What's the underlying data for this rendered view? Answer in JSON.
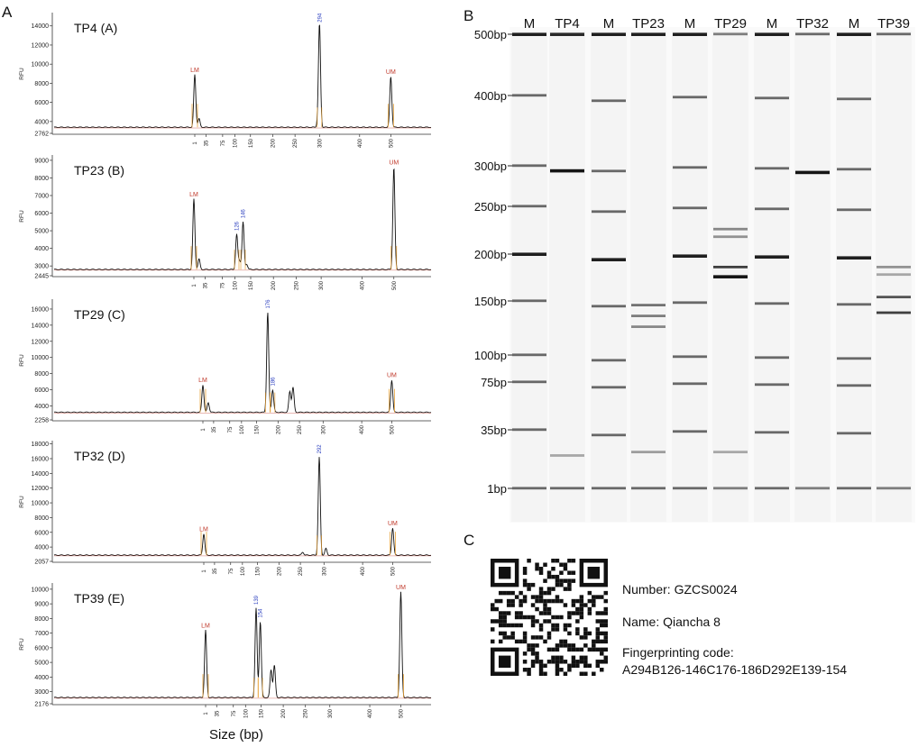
{
  "figure": {
    "panel_letters": [
      "A",
      "B",
      "C"
    ]
  },
  "colors": {
    "trace": "#111111",
    "trace_red": "#c0392b",
    "marker_label": "#c0392b",
    "peak_label": "#2b3fbf",
    "orange_bar": "#e8a33a",
    "gel_background": "#ffffff",
    "band": "#1a1a1a"
  },
  "chart_data": [
    {
      "type": "line",
      "title": "TP4 (A)",
      "ylabel": "RFU",
      "xlabel": "",
      "yticks": [
        2762,
        4000,
        6000,
        8000,
        10000,
        12000,
        14000
      ],
      "ylim": [
        2762,
        15200
      ],
      "xticks": [
        "1",
        "35",
        "75",
        "100",
        "150",
        "200",
        "250",
        "300",
        "400",
        "500"
      ],
      "baseline": 3400,
      "peaks": [
        {
          "x": 0,
          "height": 8900,
          "label": "LM",
          "kind": "marker"
        },
        {
          "x": 0.38,
          "height": 4300,
          "label": "",
          "kind": "minor"
        },
        {
          "x": 7.0,
          "height": 14000,
          "label": "294",
          "kind": "sample"
        },
        {
          "x": 6.94,
          "height": 4100,
          "label": "",
          "kind": "minor"
        },
        {
          "x": 9.0,
          "height": 8700,
          "label": "UM",
          "kind": "marker"
        }
      ]
    },
    {
      "type": "line",
      "title": "TP23 (B)",
      "ylabel": "RFU",
      "xlabel": "",
      "yticks": [
        2445,
        3000,
        4000,
        5000,
        6000,
        7000,
        8000,
        9000
      ],
      "ylim": [
        2445,
        9200
      ],
      "xticks": [
        "1",
        "35",
        "75",
        "100",
        "150",
        "200",
        "250",
        "300",
        "400",
        "500"
      ],
      "baseline": 2800,
      "peaks": [
        {
          "x": 0,
          "height": 6800,
          "label": "LM",
          "kind": "marker"
        },
        {
          "x": 0.45,
          "height": 3400,
          "label": "",
          "kind": "minor"
        },
        {
          "x": 3.12,
          "height": 4800,
          "label": "126",
          "kind": "sample"
        },
        {
          "x": 3.52,
          "height": 5500,
          "label": "146",
          "kind": "sample"
        },
        {
          "x": 3.3,
          "height": 3300,
          "label": "",
          "kind": "minor"
        },
        {
          "x": 3.75,
          "height": 3100,
          "label": "",
          "kind": "minor"
        },
        {
          "x": 9.0,
          "height": 8600,
          "label": "UM",
          "kind": "marker"
        }
      ]
    },
    {
      "type": "line",
      "title": "TP29 (C)",
      "ylabel": "RFU",
      "xlabel": "",
      "yticks": [
        2258,
        4000,
        6000,
        8000,
        10000,
        12000,
        14000,
        16000
      ],
      "ylim": [
        2258,
        17000
      ],
      "xticks": [
        "1",
        "35",
        "75",
        "100",
        "150",
        "200",
        "250",
        "300",
        "400",
        "500"
      ],
      "baseline": 3200,
      "peaks": [
        {
          "x": 0,
          "height": 6600,
          "label": "LM",
          "kind": "marker"
        },
        {
          "x": 0.5,
          "height": 4400,
          "label": "",
          "kind": "minor"
        },
        {
          "x": 4.52,
          "height": 15600,
          "label": "176",
          "kind": "sample"
        },
        {
          "x": 4.75,
          "height": 6000,
          "label": "186",
          "kind": "sample"
        },
        {
          "x": 5.55,
          "height": 5800,
          "label": "",
          "kind": "minor"
        },
        {
          "x": 5.7,
          "height": 6300,
          "label": "",
          "kind": "minor"
        },
        {
          "x": 9.0,
          "height": 7200,
          "label": "UM",
          "kind": "marker"
        }
      ]
    },
    {
      "type": "line",
      "title": "TP32 (D)",
      "ylabel": "RFU",
      "xlabel": "",
      "yticks": [
        2057,
        4000,
        6000,
        8000,
        10000,
        12000,
        14000,
        16000,
        18000
      ],
      "ylim": [
        2057,
        18200
      ],
      "xticks": [
        "1",
        "35",
        "75",
        "100",
        "150",
        "200",
        "250",
        "300",
        "400",
        "500"
      ],
      "baseline": 2900,
      "peaks": [
        {
          "x": 0,
          "height": 5800,
          "label": "LM",
          "kind": "marker"
        },
        {
          "x": 6.8,
          "height": 16200,
          "label": "292",
          "kind": "sample"
        },
        {
          "x": 7.05,
          "height": 3800,
          "label": "",
          "kind": "minor"
        },
        {
          "x": 6.1,
          "height": 3300,
          "label": "",
          "kind": "minor"
        },
        {
          "x": 9.0,
          "height": 6600,
          "label": "UM",
          "kind": "marker"
        }
      ]
    },
    {
      "type": "line",
      "title": "TP39 (E)",
      "ylabel": "RFU",
      "xlabel": "Size (bp)",
      "yticks": [
        2176,
        3000,
        4000,
        5000,
        6000,
        7000,
        8000,
        9000,
        10000
      ],
      "ylim": [
        2176,
        10300
      ],
      "xticks": [
        "1",
        "35",
        "75",
        "100",
        "150",
        "200",
        "250",
        "300",
        "400",
        "500"
      ],
      "baseline": 2600,
      "peaks": [
        {
          "x": 0,
          "height": 7200,
          "label": "LM",
          "kind": "marker"
        },
        {
          "x": 3.68,
          "height": 8700,
          "label": "139",
          "kind": "sample"
        },
        {
          "x": 3.95,
          "height": 7800,
          "label": "154",
          "kind": "sample"
        },
        {
          "x": 4.45,
          "height": 4500,
          "label": "",
          "kind": "minor"
        },
        {
          "x": 4.6,
          "height": 4800,
          "label": "",
          "kind": "minor"
        },
        {
          "x": 9.0,
          "height": 9800,
          "label": "UM",
          "kind": "marker"
        }
      ]
    },
    {
      "type": "gel",
      "title": "",
      "lanes": [
        "M",
        "TP4",
        "M",
        "TP23",
        "M",
        "TP29",
        "M",
        "TP32",
        "M",
        "TP39"
      ],
      "size_labels": [
        "500bp",
        "400bp",
        "300bp",
        "250bp",
        "200bp",
        "150bp",
        "100bp",
        "75bp",
        "35bp",
        "1bp"
      ],
      "ladder_bp": [
        500,
        400,
        300,
        250,
        200,
        150,
        100,
        75,
        35,
        1
      ],
      "bands": {
        "TP4": [
          {
            "bp": 294,
            "intensity": 1.0
          },
          {
            "bp": 500,
            "intensity": 0.9
          },
          {
            "bp": 1,
            "intensity": 0.6
          },
          {
            "bp": 20,
            "intensity": 0.3
          }
        ],
        "TP23": [
          {
            "bp": 146,
            "intensity": 0.55
          },
          {
            "bp": 136,
            "intensity": 0.5
          },
          {
            "bp": 126,
            "intensity": 0.45
          },
          {
            "bp": 500,
            "intensity": 0.95
          },
          {
            "bp": 1,
            "intensity": 0.6
          },
          {
            "bp": 22,
            "intensity": 0.35
          }
        ],
        "TP29": [
          {
            "bp": 186,
            "intensity": 0.8
          },
          {
            "bp": 176,
            "intensity": 1.0
          },
          {
            "bp": 226,
            "intensity": 0.45
          },
          {
            "bp": 218,
            "intensity": 0.4
          },
          {
            "bp": 500,
            "intensity": 0.5
          },
          {
            "bp": 1,
            "intensity": 0.5
          },
          {
            "bp": 22,
            "intensity": 0.3
          }
        ],
        "TP32": [
          {
            "bp": 292,
            "intensity": 1.0
          },
          {
            "bp": 500,
            "intensity": 0.6
          },
          {
            "bp": 1,
            "intensity": 0.5
          }
        ],
        "TP39": [
          {
            "bp": 154,
            "intensity": 0.7
          },
          {
            "bp": 139,
            "intensity": 0.8
          },
          {
            "bp": 186,
            "intensity": 0.4
          },
          {
            "bp": 178,
            "intensity": 0.3
          },
          {
            "bp": 500,
            "intensity": 0.6
          },
          {
            "bp": 1,
            "intensity": 0.5
          }
        ]
      }
    }
  ],
  "panel_c": {
    "number_line": "Number: GZCS0024",
    "name_line": "Name: Qiancha 8",
    "code_label": "Fingerprinting code:",
    "code_value": "A294B126-146C176-186D292E139-154"
  }
}
